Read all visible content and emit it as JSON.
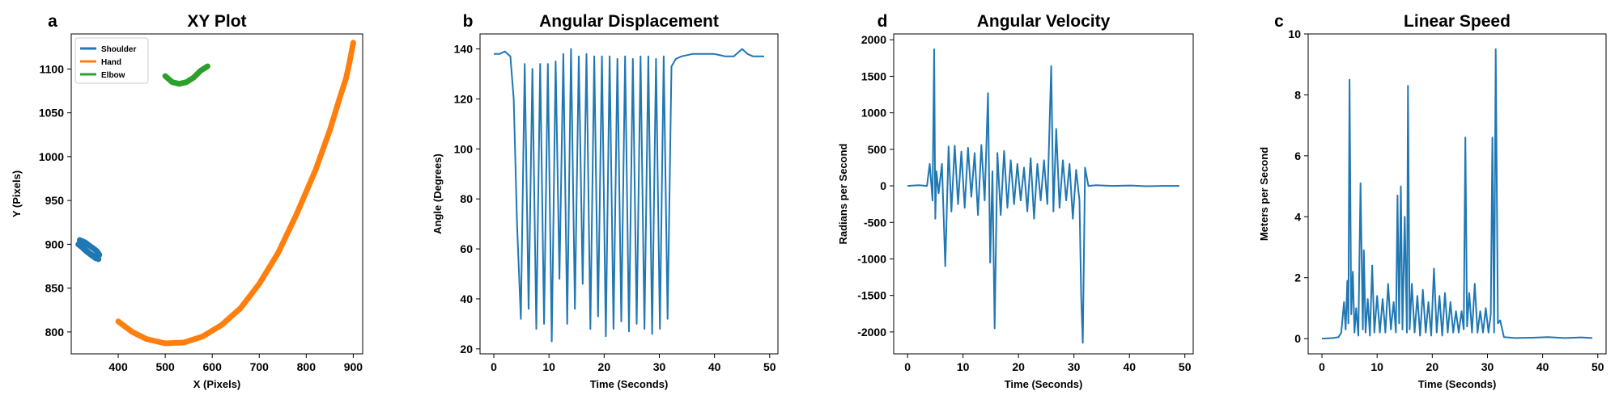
{
  "chart_data": [
    {
      "type": "scatter",
      "letter": "a",
      "title": "XY Plot",
      "xlabel": "X (Pixels)",
      "ylabel": "Y (Pixels)",
      "xlim": [
        300,
        920
      ],
      "ylim": [
        775,
        1140
      ],
      "xticks": [
        400,
        500,
        600,
        700,
        800,
        900
      ],
      "yticks": [
        800,
        850,
        900,
        950,
        1000,
        1050,
        1100
      ],
      "legend_position": "top-left",
      "series": [
        {
          "name": "Shoulder",
          "color": "#1f77b4",
          "x": [
            318,
            330,
            340,
            348,
            355,
            360,
            352,
            342,
            332,
            322,
            315,
            325,
            338,
            350,
            358
          ],
          "y": [
            905,
            902,
            898,
            895,
            892,
            888,
            884,
            888,
            892,
            897,
            900,
            896,
            890,
            886,
            883
          ]
        },
        {
          "name": "Hand",
          "color": "#ff7f0e",
          "x": [
            400,
            430,
            460,
            500,
            540,
            580,
            620,
            660,
            700,
            740,
            780,
            820,
            850,
            870,
            885,
            893,
            900
          ],
          "y": [
            812,
            800,
            792,
            787,
            788,
            795,
            808,
            827,
            855,
            890,
            935,
            985,
            1030,
            1065,
            1090,
            1110,
            1130
          ]
        },
        {
          "name": "Elbow",
          "color": "#2ca02c",
          "x": [
            500,
            515,
            530,
            545,
            560,
            575,
            590
          ],
          "y": [
            1092,
            1085,
            1083,
            1085,
            1090,
            1098,
            1103
          ]
        }
      ]
    },
    {
      "type": "line",
      "letter": "b",
      "title": "Angular Displacement",
      "xlabel": "Time (Seconds)",
      "ylabel": "Angle (Degrees)",
      "xlim": [
        -2.5,
        51.5
      ],
      "ylim": [
        18,
        146
      ],
      "xticks": [
        0,
        10,
        20,
        30,
        40,
        50
      ],
      "yticks": [
        20,
        40,
        60,
        80,
        100,
        120,
        140
      ],
      "color": "#1f77b4",
      "series": [
        {
          "x": [
            0,
            1,
            2,
            3,
            3.6,
            4.2,
            4.9,
            5.6,
            6.3,
            7,
            7.7,
            8.4,
            9.1,
            9.8,
            10.5,
            11.2,
            11.9,
            12.6,
            13.3,
            14,
            14.7,
            15.4,
            16.1,
            16.8,
            17.5,
            18.2,
            18.9,
            19.6,
            20.3,
            21,
            21.7,
            22.4,
            23.1,
            23.8,
            24.5,
            25.2,
            25.9,
            26.6,
            27.3,
            28,
            28.7,
            29.4,
            30.1,
            30.8,
            31.5,
            32.2,
            33,
            34,
            36,
            38,
            40,
            42,
            43.5,
            45,
            46,
            47,
            48,
            49
          ],
          "y": [
            138,
            138,
            139,
            137,
            120,
            70,
            32,
            134,
            36,
            132,
            28,
            134,
            30,
            134,
            23,
            135,
            48,
            138,
            30,
            140,
            36,
            137,
            46,
            138,
            28,
            137,
            33,
            137,
            25,
            137,
            28,
            136,
            31,
            137,
            27,
            136,
            30,
            137,
            28,
            137,
            26,
            136,
            28,
            137,
            32,
            133,
            136,
            137,
            138,
            138,
            138,
            137,
            137,
            140,
            138,
            137,
            137,
            137
          ]
        }
      ]
    },
    {
      "type": "line",
      "letter": "d",
      "title": "Angular Velocity",
      "xlabel": "Time (Seconds)",
      "ylabel": "Radians per Second",
      "xlim": [
        -2.5,
        51.5
      ],
      "ylim": [
        -2300,
        2080
      ],
      "xticks": [
        0,
        10,
        20,
        30,
        40,
        50
      ],
      "yticks": [
        -2000,
        -1500,
        -1000,
        -500,
        0,
        500,
        1000,
        1500,
        2000
      ],
      "color": "#1f77b4",
      "series": [
        {
          "x": [
            0,
            2,
            3.5,
            4,
            4.5,
            4.8,
            5.0,
            5.2,
            5.6,
            6.2,
            6.8,
            7.4,
            7.9,
            8.5,
            9.1,
            9.7,
            10.3,
            10.9,
            11.5,
            12.1,
            12.7,
            13.3,
            13.9,
            14.5,
            14.9,
            15.3,
            15.7,
            16.2,
            16.8,
            17.4,
            18,
            18.6,
            19.2,
            19.8,
            20.4,
            21,
            21.6,
            22.2,
            22.8,
            23.4,
            24,
            24.6,
            25.2,
            25.9,
            26.3,
            26.8,
            27.4,
            28,
            28.6,
            29.2,
            29.8,
            30.4,
            31,
            31.3,
            31.6,
            32,
            32.6,
            34,
            37,
            40,
            43,
            46,
            49
          ],
          "y": [
            0,
            10,
            0,
            300,
            -200,
            1870,
            -450,
            200,
            -100,
            300,
            -1100,
            540,
            -350,
            550,
            -250,
            470,
            -300,
            520,
            -150,
            450,
            -400,
            560,
            -200,
            1270,
            -1050,
            200,
            -1950,
            450,
            -400,
            480,
            -300,
            350,
            -250,
            300,
            -200,
            250,
            -350,
            380,
            -450,
            300,
            -200,
            350,
            -250,
            1640,
            -350,
            780,
            -300,
            350,
            -200,
            300,
            -450,
            220,
            -200,
            -1500,
            -2150,
            250,
            0,
            10,
            0,
            5,
            -5,
            0,
            0
          ]
        }
      ]
    },
    {
      "type": "line",
      "letter": "c",
      "title": "Linear Speed",
      "xlabel": "Time (Seconds)",
      "ylabel": "Meters per Second",
      "xlim": [
        -2.5,
        51.5
      ],
      "ylim": [
        -0.5,
        10
      ],
      "xticks": [
        0,
        10,
        20,
        30,
        40,
        50
      ],
      "yticks": [
        0,
        2,
        4,
        6,
        8,
        10
      ],
      "color": "#1f77b4",
      "series": [
        {
          "x": [
            0,
            2,
            3,
            3.5,
            4,
            4.3,
            4.6,
            4.8,
            5.0,
            5.3,
            5.6,
            5.9,
            6.2,
            6.6,
            7,
            7.4,
            7.6,
            7.9,
            8.3,
            8.7,
            9.1,
            9.5,
            10,
            10.5,
            11,
            11.5,
            12,
            12.5,
            13,
            13.4,
            13.7,
            14,
            14.3,
            14.6,
            15,
            15.4,
            15.6,
            15.9,
            16.3,
            16.8,
            17.3,
            17.8,
            18.3,
            18.8,
            19.3,
            19.8,
            20.3,
            20.8,
            21.3,
            21.8,
            22.3,
            22.8,
            23.3,
            23.8,
            24.3,
            24.8,
            25.3,
            25.7,
            26,
            26.3,
            26.7,
            27.2,
            27.7,
            28.2,
            28.7,
            29.2,
            29.7,
            30.2,
            30.6,
            30.9,
            31.2,
            31.5,
            31.9,
            32.3,
            33,
            35,
            38,
            41,
            44,
            47,
            49
          ],
          "y": [
            0,
            0.02,
            0.05,
            0.2,
            1.2,
            0.3,
            1.9,
            0.5,
            8.5,
            0.8,
            2.2,
            0.2,
            1.0,
            0.1,
            5.1,
            0.3,
            2.9,
            0.2,
            1.3,
            0.1,
            2.4,
            0.2,
            1.4,
            0.2,
            1.3,
            0.2,
            1.8,
            0.3,
            1.2,
            0.2,
            4.7,
            0.5,
            5.0,
            0.3,
            4.0,
            0.2,
            8.3,
            0.3,
            1.8,
            0.2,
            1.4,
            0.1,
            1.6,
            0.2,
            1.2,
            0.1,
            2.3,
            0.2,
            1.4,
            0.1,
            1.5,
            0.2,
            1.2,
            0.2,
            0.9,
            0.2,
            0.9,
            0.3,
            6.6,
            0.4,
            1.5,
            0.2,
            1.8,
            0.2,
            0.9,
            0.2,
            1.0,
            0.2,
            0.8,
            6.6,
            0.2,
            9.5,
            0.5,
            0.6,
            0.05,
            0.02,
            0.03,
            0.05,
            0.02,
            0.04,
            0.02
          ]
        }
      ]
    }
  ]
}
